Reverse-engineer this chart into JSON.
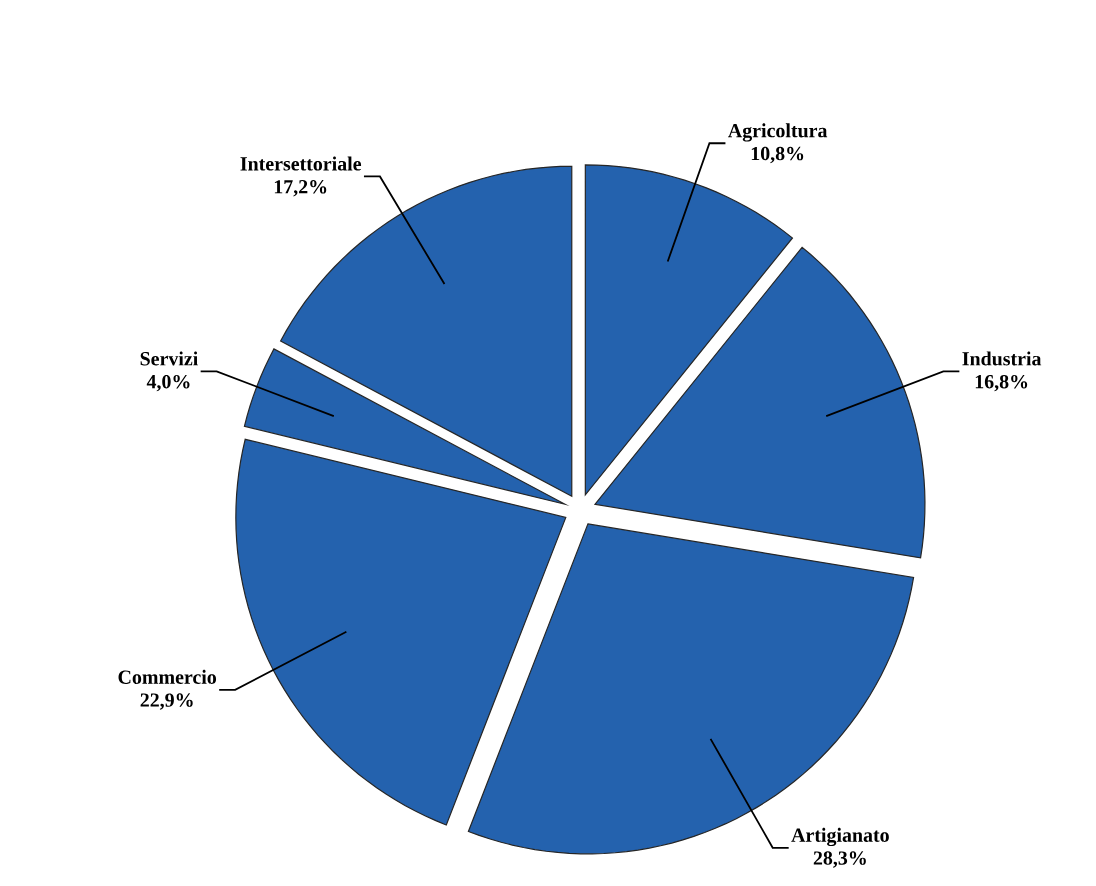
{
  "chart_data": {
    "type": "pie",
    "categories": [
      "Agricoltura",
      "Industria",
      "Artigianato",
      "Commercio",
      "Servizi",
      "Intersettoriale"
    ],
    "values": [
      10.8,
      16.8,
      28.3,
      22.9,
      4.0,
      17.2
    ],
    "value_labels": [
      "10,8%",
      "16,8%",
      "28,3%",
      "22,9%",
      "4,0%",
      "17,2%"
    ],
    "colors": [
      "#2462ae",
      "#2462ae",
      "#2462ae",
      "#2462ae",
      "#2462ae",
      "#2462ae"
    ]
  }
}
